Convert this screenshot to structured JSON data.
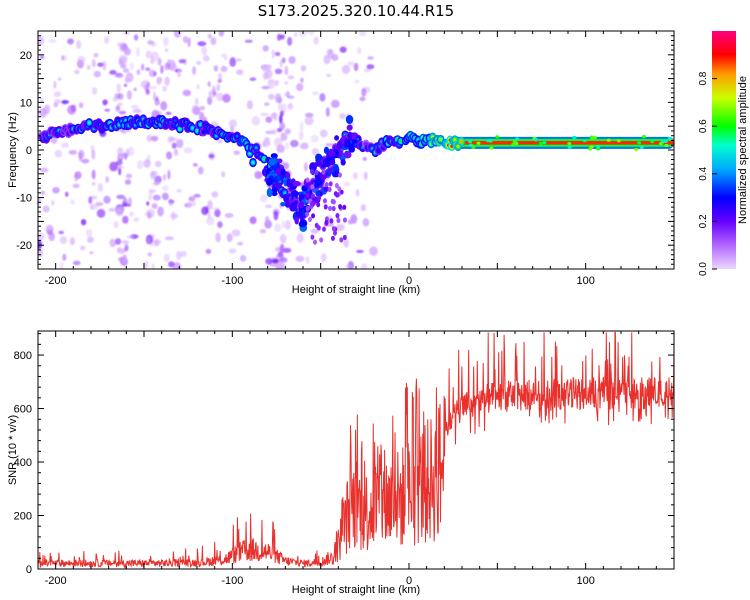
{
  "figure": {
    "title": "S173.2025.320.10.44.R15",
    "colors": {
      "snr_line": "#e8302c",
      "frame": "#000000",
      "background": "#ffffff"
    }
  },
  "chart_data": [
    {
      "type": "heatmap",
      "xlabel": "Height of straight line (km)",
      "ylabel": "Frequency (Hz)",
      "xlim": [
        -210,
        150
      ],
      "ylim": [
        -25,
        25
      ],
      "xticks": [
        -200,
        -100,
        0,
        100
      ],
      "yticks": [
        -20,
        -10,
        0,
        10,
        20
      ],
      "colorbar": {
        "label": "Normalized spectral amplitude",
        "range": [
          0,
          1
        ],
        "ticks": [
          0.0,
          0.2,
          0.4,
          0.6,
          0.8
        ],
        "colormap": [
          "#e6ccff",
          "#8800ff",
          "#0000ff",
          "#00ccff",
          "#00ff00",
          "#ffff00",
          "#ff0000",
          "#ff00cc"
        ]
      },
      "ridge": {
        "x": [
          -205,
          -195,
          -185,
          -175,
          -165,
          -155,
          -145,
          -135,
          -125,
          -115,
          -105,
          -95,
          -90,
          -85,
          -80,
          -75,
          -70,
          -65,
          -60,
          -55,
          -50,
          -45,
          -40,
          -35,
          -30,
          -25,
          -20,
          -15,
          -10,
          -5,
          0,
          5,
          10,
          15,
          20,
          30,
          50,
          70,
          90,
          110,
          130,
          150
        ],
        "y": [
          3,
          4,
          5,
          5,
          5.5,
          6,
          6,
          5.5,
          5,
          4.5,
          3,
          2,
          0,
          -2,
          -4,
          -6,
          -8,
          -10,
          -12,
          -8,
          -5,
          -3,
          0,
          3,
          2,
          1,
          0,
          1,
          2,
          1.5,
          3,
          2,
          2,
          2,
          1.5,
          1.5,
          1.5,
          1.5,
          1.5,
          1.5,
          1.5,
          1.5
        ],
        "amplitude": [
          0.3,
          0.35,
          0.4,
          0.45,
          0.45,
          0.45,
          0.5,
          0.45,
          0.45,
          0.4,
          0.45,
          0.5,
          0.5,
          0.45,
          0.45,
          0.4,
          0.35,
          0.35,
          0.35,
          0.3,
          0.3,
          0.25,
          0.3,
          0.35,
          0.35,
          0.3,
          0.35,
          0.4,
          0.45,
          0.5,
          0.5,
          0.55,
          0.6,
          0.7,
          0.8,
          0.85,
          0.9,
          0.9,
          0.9,
          0.9,
          0.9,
          0.85
        ]
      }
    },
    {
      "type": "line",
      "xlabel": "Height of straight line (km)",
      "ylabel": "SNR (10 * v/v)",
      "xlim": [
        -210,
        150
      ],
      "ylim": [
        0,
        890
      ],
      "xticks": [
        -200,
        -100,
        0,
        100
      ],
      "yticks": [
        0,
        200,
        400,
        600,
        800
      ],
      "series": [
        {
          "name": "SNR",
          "envelope_x": [
            -210,
            -150,
            -120,
            -105,
            -95,
            -90,
            -80,
            -70,
            -60,
            -50,
            -42,
            -38,
            -34,
            -30,
            -25,
            -20,
            -15,
            -10,
            -5,
            0,
            5,
            10,
            15,
            20,
            25,
            30,
            40,
            50,
            60,
            80,
            100,
            120,
            150
          ],
          "envelope_y": [
            25,
            25,
            28,
            40,
            75,
            85,
            75,
            35,
            25,
            30,
            60,
            180,
            290,
            330,
            280,
            320,
            330,
            340,
            350,
            380,
            410,
            430,
            460,
            540,
            590,
            620,
            650,
            660,
            670,
            670,
            680,
            675,
            680
          ]
        }
      ]
    }
  ]
}
